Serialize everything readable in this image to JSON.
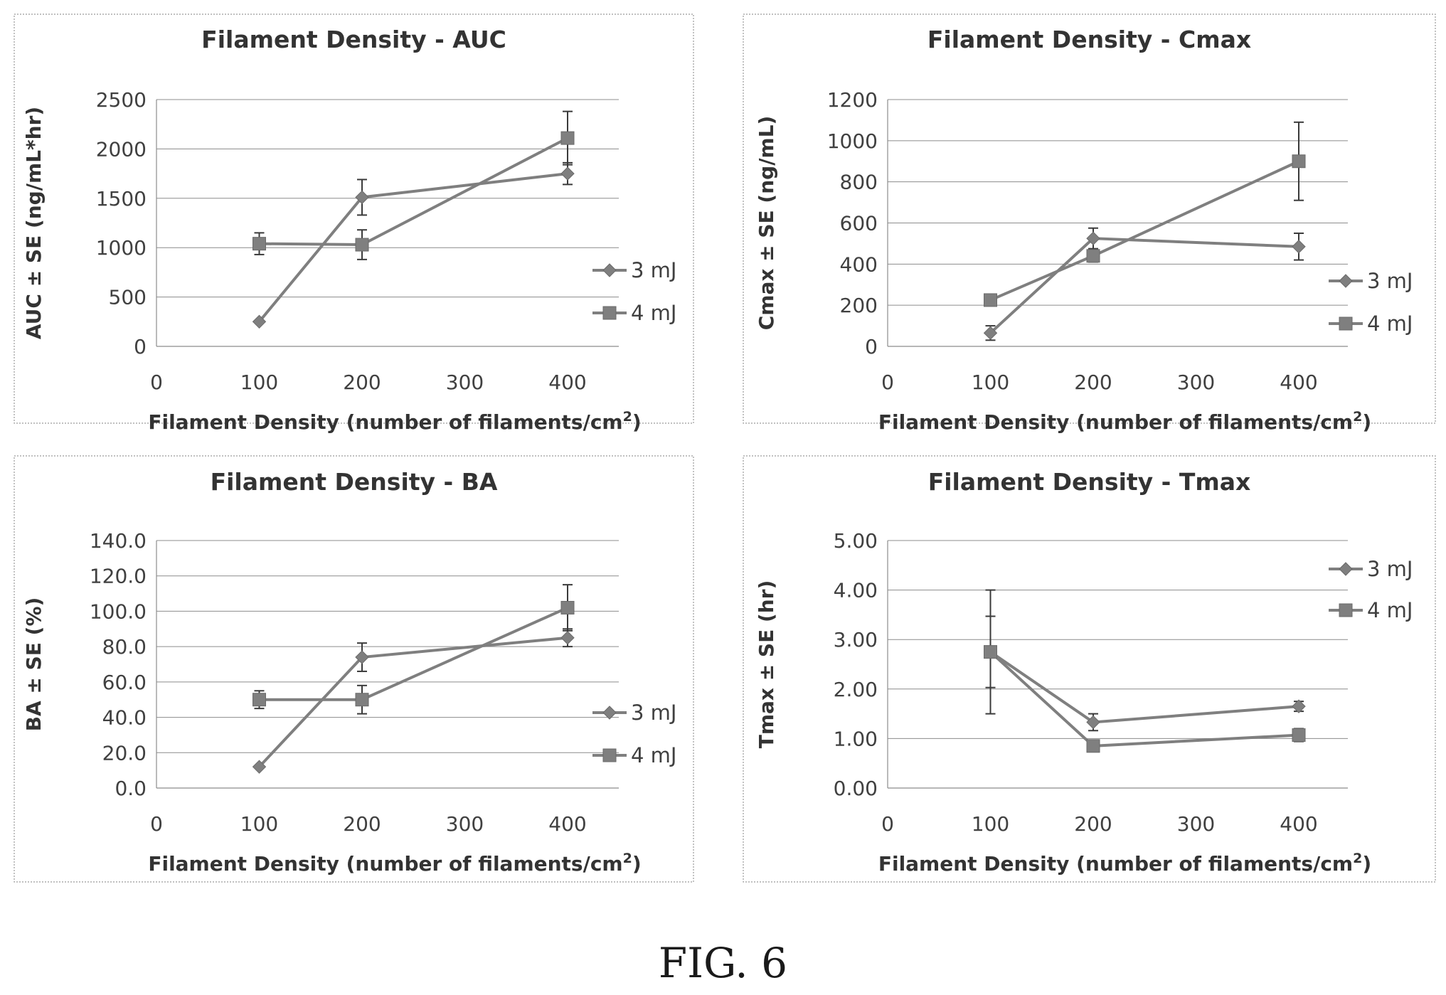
{
  "figure_caption": "FIG. 6",
  "legend_series": [
    "3 mJ",
    "4 mJ"
  ],
  "marker_shapes": [
    "diamond",
    "square"
  ],
  "series_color": "#7f7f7f",
  "chart_data": [
    {
      "type": "line",
      "title": "Filament Density - AUC",
      "xlabel": "Filament Density (number of filaments/cm",
      "xlabel_superscript": "2",
      "xlabel_suffix": ")",
      "ylabel": "AUC ± SE (ng/mL*hr)",
      "x_tick_labels": [
        "0",
        "100",
        "200",
        "300",
        "400"
      ],
      "y_tick_labels": [
        "0",
        "500",
        "1000",
        "1500",
        "2000",
        "2500"
      ],
      "ylim": [
        0,
        2500
      ],
      "categories": [
        "100",
        "200",
        "400"
      ],
      "legend_position": "right",
      "series": [
        {
          "name": "3 mJ",
          "marker": "diamond",
          "values": [
            250,
            1510,
            1750
          ],
          "errors": [
            0,
            180,
            110
          ]
        },
        {
          "name": "4 mJ",
          "marker": "square",
          "values": [
            1040,
            1030,
            2110
          ],
          "errors": [
            110,
            150,
            270
          ]
        }
      ]
    },
    {
      "type": "line",
      "title": "Filament Density - Cmax",
      "xlabel": "Filament Density (number of filaments/cm",
      "xlabel_superscript": "2",
      "xlabel_suffix": ")",
      "ylabel": "Cmax ± SE (ng/mL)",
      "x_tick_labels": [
        "0",
        "100",
        "200",
        "300",
        "400"
      ],
      "y_tick_labels": [
        "0",
        "200",
        "400",
        "600",
        "800",
        "1000",
        "1200"
      ],
      "ylim": [
        0,
        1200
      ],
      "categories": [
        "100",
        "200",
        "400"
      ],
      "legend_position": "right",
      "series": [
        {
          "name": "3 mJ",
          "marker": "diamond",
          "values": [
            65,
            525,
            485
          ],
          "errors": [
            35,
            50,
            65
          ]
        },
        {
          "name": "4 mJ",
          "marker": "square",
          "values": [
            225,
            440,
            900
          ],
          "errors": [
            20,
            30,
            190
          ]
        }
      ]
    },
    {
      "type": "line",
      "title": "Filament Density - BA",
      "xlabel": "Filament Density (number of filaments/cm",
      "xlabel_superscript": "2",
      "xlabel_suffix": ")",
      "ylabel": "BA ± SE (%)",
      "x_tick_labels": [
        "0",
        "100",
        "200",
        "300",
        "400"
      ],
      "y_tick_labels": [
        "0.0",
        "20.0",
        "40.0",
        "60.0",
        "80.0",
        "100.0",
        "120.0",
        "140.0"
      ],
      "ylim": [
        0,
        140
      ],
      "categories": [
        "100",
        "200",
        "400"
      ],
      "legend_position": "right",
      "series": [
        {
          "name": "3 mJ",
          "marker": "diamond",
          "values": [
            12,
            74,
            85
          ],
          "errors": [
            0,
            8,
            5
          ]
        },
        {
          "name": "4 mJ",
          "marker": "square",
          "values": [
            50,
            50,
            102
          ],
          "errors": [
            5,
            8,
            13
          ]
        }
      ]
    },
    {
      "type": "line",
      "title": "Filament Density - Tmax",
      "xlabel": "Filament Density (number of filaments/cm",
      "xlabel_superscript": "2",
      "xlabel_suffix": ")",
      "ylabel": "Tmax ± SE (hr)",
      "x_tick_labels": [
        "0",
        "100",
        "200",
        "300",
        "400"
      ],
      "y_tick_labels": [
        "0.00",
        "1.00",
        "2.00",
        "3.00",
        "4.00",
        "5.00"
      ],
      "ylim": [
        0,
        5
      ],
      "categories": [
        "100",
        "200",
        "400"
      ],
      "legend_position": "top-right",
      "series": [
        {
          "name": "3 mJ",
          "marker": "diamond",
          "values": [
            2.75,
            1.33,
            1.65
          ],
          "errors": [
            0.72,
            0.17,
            0.1
          ]
        },
        {
          "name": "4 mJ",
          "marker": "square",
          "values": [
            2.75,
            0.85,
            1.07
          ],
          "errors": [
            1.25,
            0.07,
            0.13
          ]
        }
      ]
    }
  ]
}
